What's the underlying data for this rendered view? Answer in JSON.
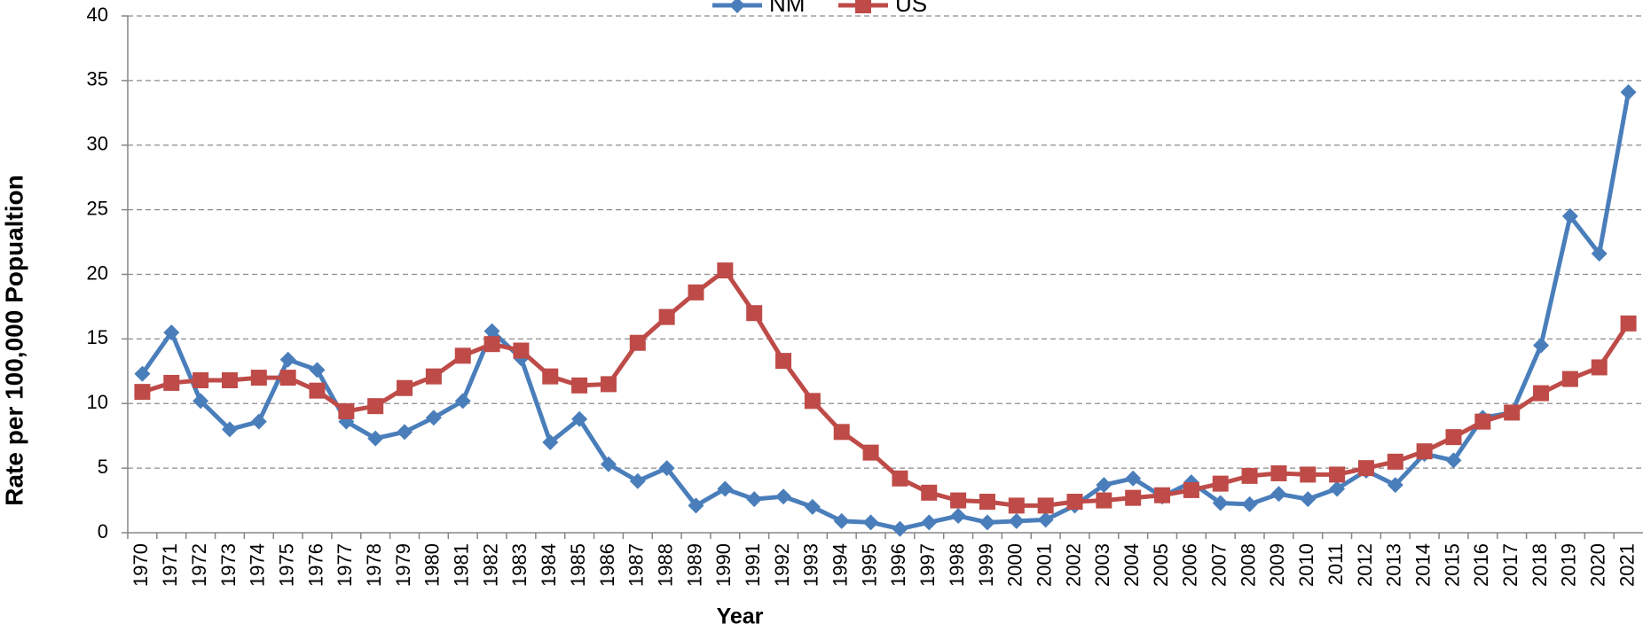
{
  "chart_data": {
    "type": "line",
    "x_label": "Year",
    "y_label": "Rate per 100,000 Popualtion",
    "categories": [
      "1970",
      "1971",
      "1972",
      "1973",
      "1974",
      "1975",
      "1976",
      "1977",
      "1978",
      "1979",
      "1980",
      "1981",
      "1982",
      "1983",
      "1984",
      "1985",
      "1986",
      "1987",
      "1988",
      "1989",
      "1990",
      "1991",
      "1992",
      "1993",
      "1994",
      "1995",
      "1996",
      "1997",
      "1998",
      "1999",
      "2000",
      "2001",
      "2002",
      "2003",
      "2004",
      "2005",
      "2006",
      "2007",
      "2008",
      "2009",
      "2010",
      "2011",
      "2012",
      "2013",
      "2014",
      "2015",
      "2016",
      "2017",
      "2018",
      "2019",
      "2020",
      "2021"
    ],
    "series": [
      {
        "name": "NM",
        "color": "#4a7ebb",
        "marker": "diamond",
        "values": [
          12.3,
          15.5,
          10.2,
          8.0,
          8.6,
          13.4,
          12.6,
          8.6,
          7.3,
          7.8,
          8.9,
          10.2,
          15.6,
          13.5,
          7.0,
          8.8,
          5.3,
          4.0,
          5.0,
          2.1,
          3.4,
          2.6,
          2.8,
          2.0,
          0.9,
          0.8,
          0.3,
          0.8,
          1.3,
          0.8,
          0.9,
          1.0,
          2.1,
          3.7,
          4.2,
          2.8,
          3.9,
          2.3,
          2.2,
          3.0,
          2.6,
          3.4,
          4.8,
          3.7,
          6.1,
          5.6,
          8.9,
          9.3,
          14.5,
          24.5,
          21.6,
          34.1
        ]
      },
      {
        "name": "US",
        "color": "#be4b48",
        "marker": "square",
        "values": [
          10.9,
          11.6,
          11.8,
          11.8,
          12.0,
          12.0,
          11.0,
          9.4,
          9.8,
          11.2,
          12.1,
          13.7,
          14.6,
          14.1,
          12.1,
          11.4,
          11.5,
          14.7,
          16.7,
          18.6,
          20.3,
          17.0,
          13.3,
          10.2,
          7.8,
          6.2,
          4.2,
          3.1,
          2.5,
          2.4,
          2.1,
          2.1,
          2.4,
          2.5,
          2.7,
          2.9,
          3.3,
          3.8,
          4.4,
          4.6,
          4.5,
          4.5,
          5.0,
          5.5,
          6.3,
          7.4,
          8.6,
          9.3,
          10.8,
          11.9,
          12.8,
          16.2
        ]
      }
    ],
    "ylim": [
      0,
      40
    ],
    "yticks": [
      0,
      5,
      10,
      15,
      20,
      25,
      30,
      35,
      40
    ],
    "grid": true,
    "legend": "top"
  }
}
